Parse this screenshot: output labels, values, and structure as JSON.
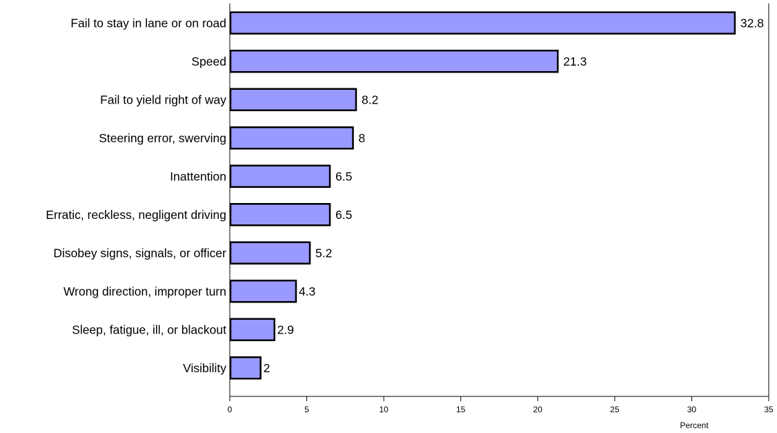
{
  "chart_data": {
    "type": "bar",
    "orientation": "horizontal",
    "categories": [
      "Fail to stay in lane or on road",
      "Speed",
      "Fail to yield right of way",
      "Steering error, swerving",
      "Inattention",
      "Erratic, reckless, negligent driving",
      "Disobey signs, signals, or officer",
      "Wrong direction, improper turn",
      "Sleep, fatigue, ill, or blackout",
      "Visibility"
    ],
    "values": [
      32.8,
      21.3,
      8.2,
      8,
      6.5,
      6.5,
      5.2,
      4.3,
      2.9,
      2
    ],
    "data_labels": [
      "32.8",
      "21.3",
      "8.2",
      "8",
      "6.5",
      "6.5",
      "5.2",
      "4.3",
      "2.9",
      "2"
    ],
    "xlabel": "Percent",
    "ylabel": "",
    "xlim": [
      0,
      35
    ],
    "xticks": [
      "0",
      "5",
      "10",
      "15",
      "20",
      "25",
      "30",
      "35"
    ],
    "grid": false,
    "legend": "none",
    "bar_color": "#9999ff",
    "bar_border_color": "#000000"
  }
}
